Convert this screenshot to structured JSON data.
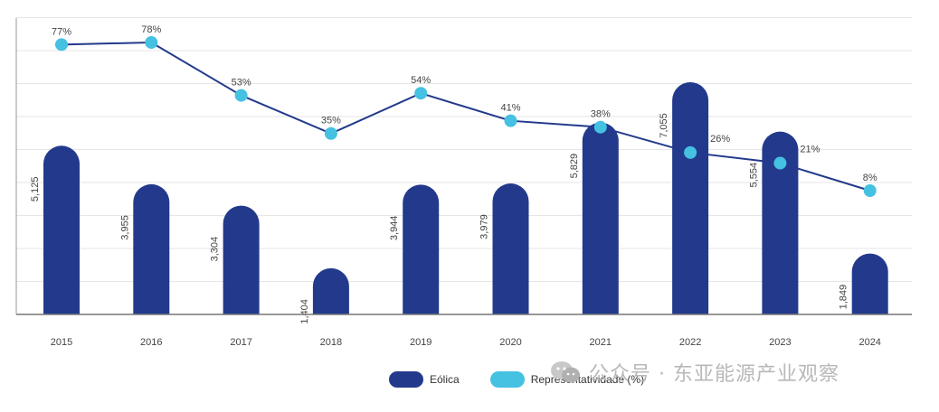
{
  "chart_data": {
    "type": "bar",
    "categories": [
      "2015",
      "2016",
      "2017",
      "2018",
      "2019",
      "2020",
      "2021",
      "2022",
      "2023",
      "2024"
    ],
    "series": [
      {
        "name": "Eólica",
        "type": "bar",
        "values": [
          5125,
          3955,
          3304,
          1404,
          3944,
          3979,
          5829,
          7055,
          5554,
          1849
        ],
        "labels": [
          "5,125",
          "3,955",
          "3,304",
          "1,404",
          "3,944",
          "3,979",
          "5,829",
          "7,055",
          "5,554",
          "1,849"
        ],
        "color": "#233a8c"
      },
      {
        "name": "Representatividade (%)",
        "type": "line",
        "values": [
          77,
          78,
          53,
          35,
          54,
          41,
          38,
          26,
          21,
          8
        ],
        "labels": [
          "77%",
          "78%",
          "53%",
          "35%",
          "54%",
          "41%",
          "38%",
          "26%",
          "21%",
          "8%"
        ],
        "color": "#45c1e1",
        "line_color": "#233a8c"
      }
    ],
    "grid": true,
    "legend_position": "bottom"
  },
  "watermark": "公众号 · 东亚能源产业观察"
}
